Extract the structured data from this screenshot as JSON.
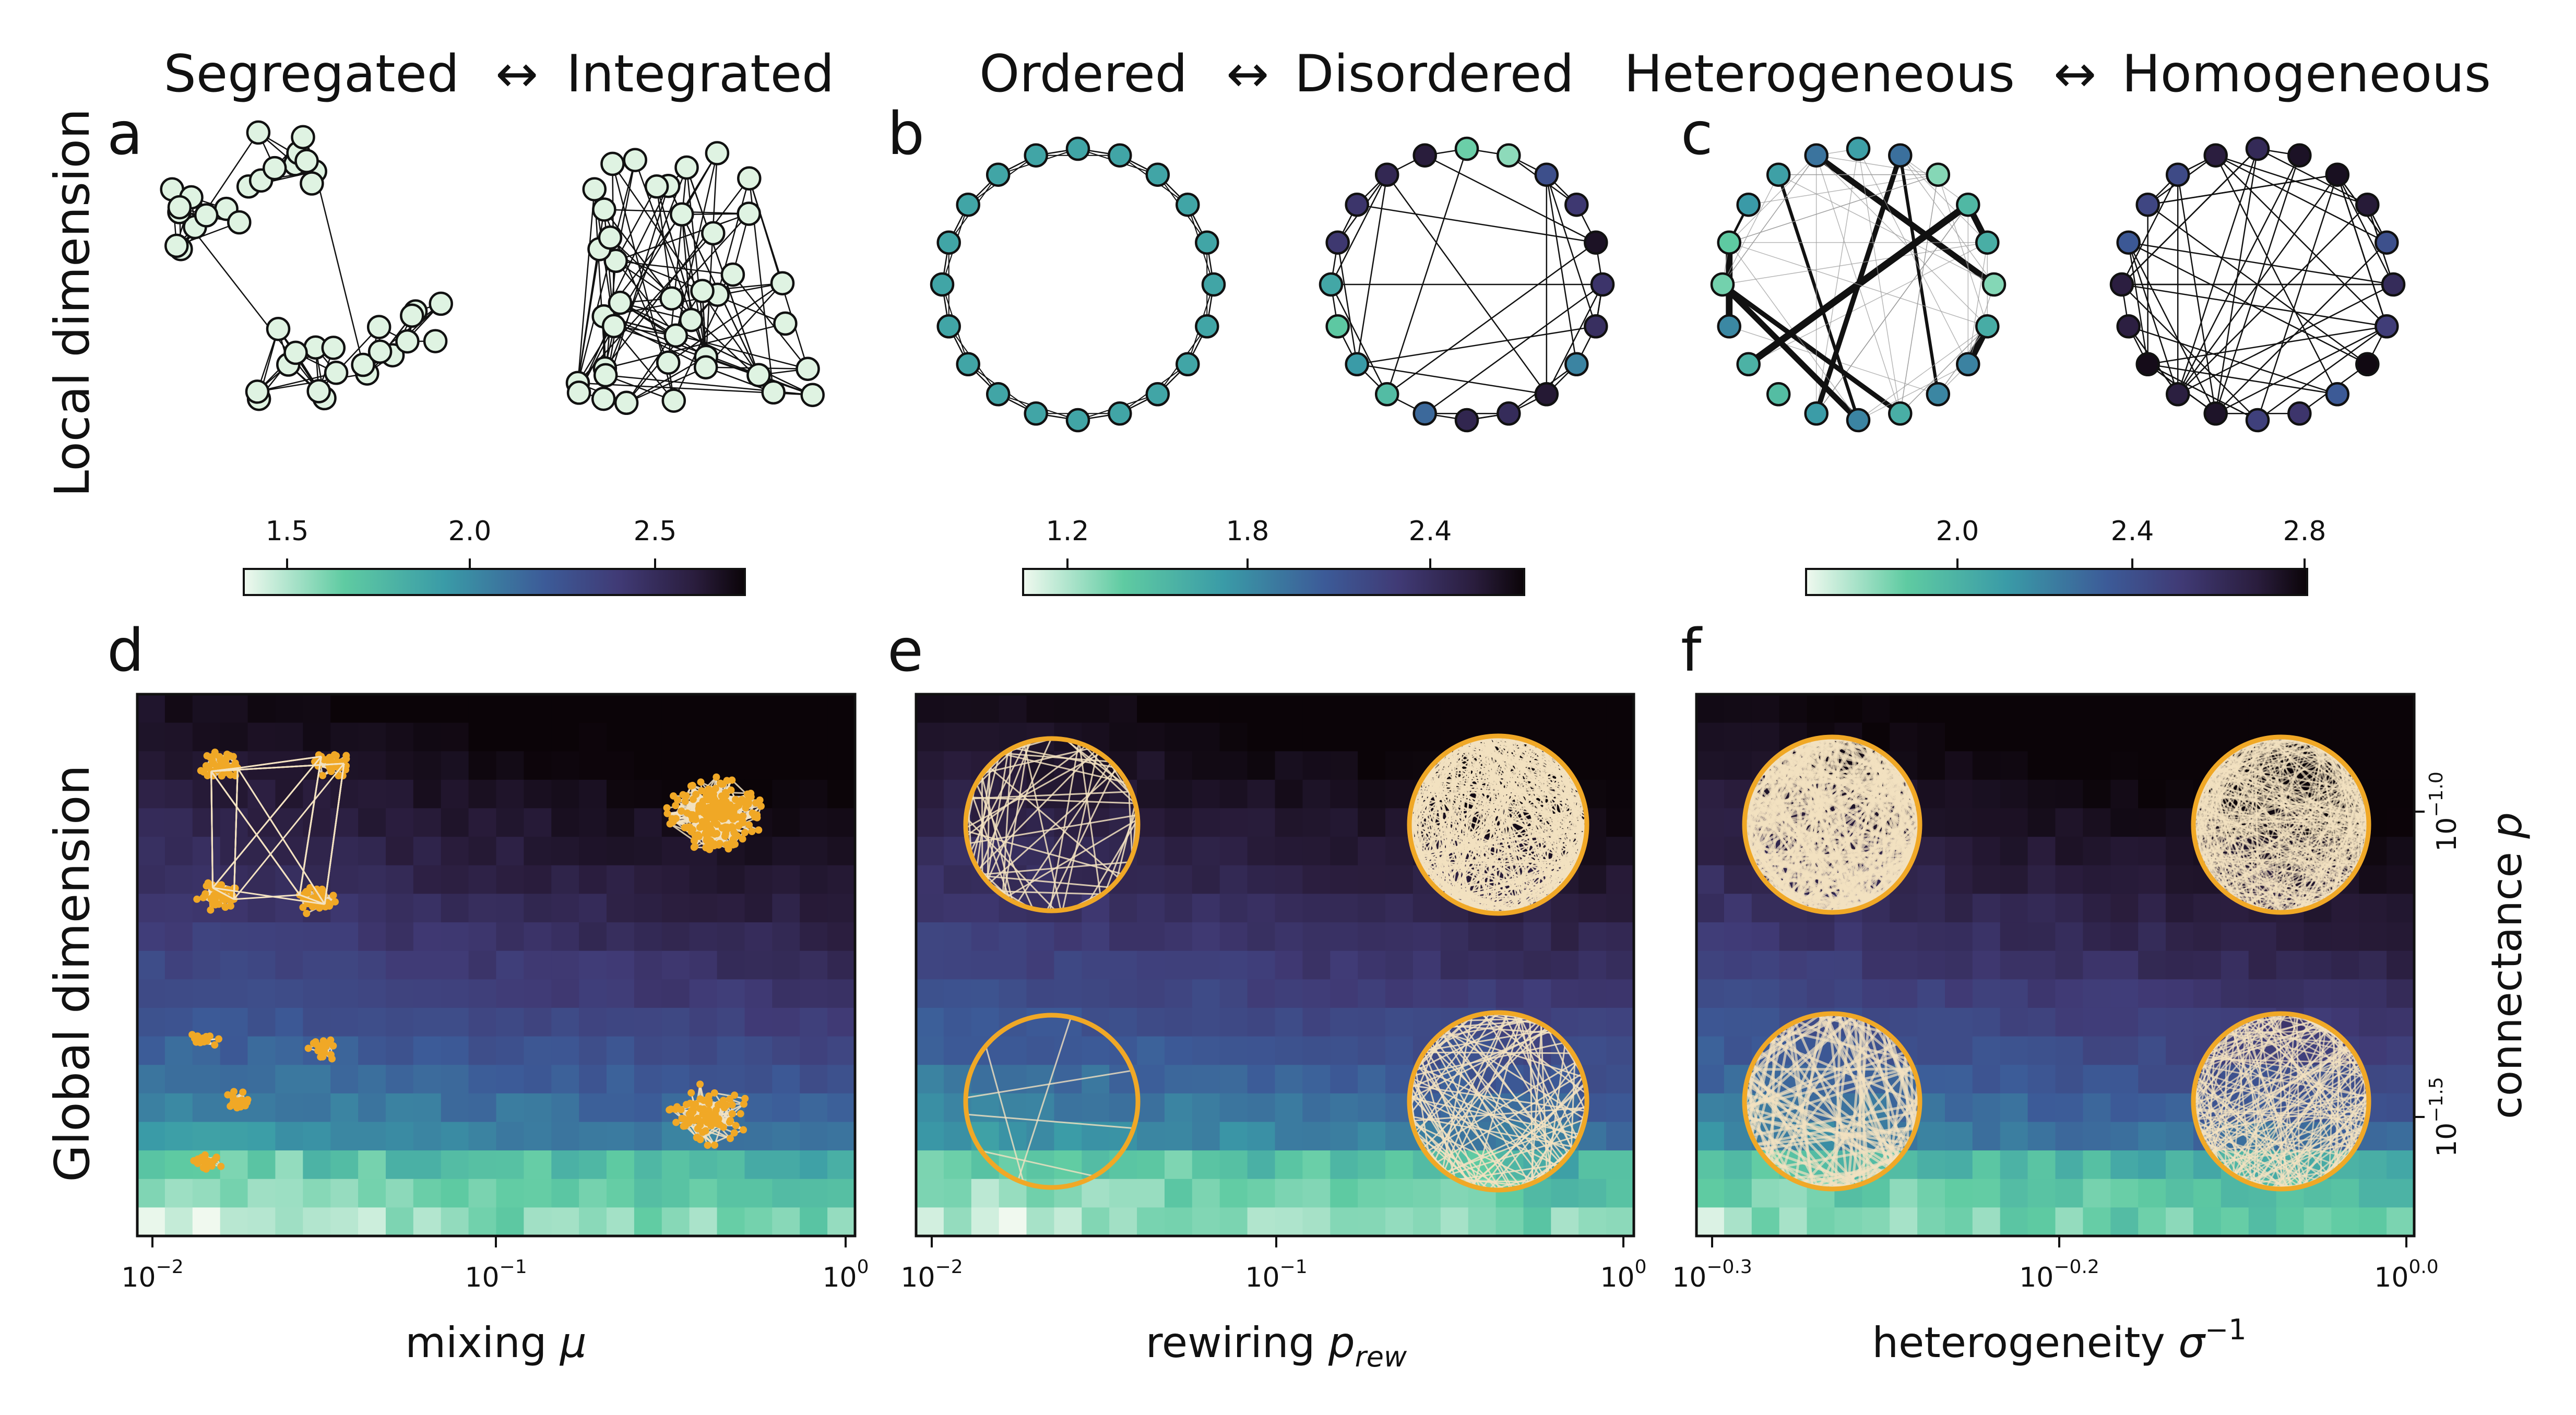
{
  "figure": {
    "side_labels": {
      "local": "Local dimension",
      "global": "Global dimension"
    },
    "headers": {
      "a": {
        "left": "Segregated",
        "arrow": "↔",
        "right": "Integrated"
      },
      "b": {
        "left": "Ordered",
        "arrow": "↔",
        "right": "Disordered"
      },
      "c": {
        "left": "Heterogeneous",
        "arrow": "↔",
        "right": "Homogeneous"
      }
    },
    "panel_letters": [
      "a",
      "b",
      "c",
      "d",
      "e",
      "f"
    ],
    "colorbars": [
      {
        "panel": "a",
        "ticks": [
          "1.5",
          "2.0",
          "2.5"
        ]
      },
      {
        "panel": "b",
        "ticks": [
          "1.2",
          "1.8",
          "2.4"
        ]
      },
      {
        "panel": "c",
        "ticks": [
          "2.0",
          "2.4",
          "2.8"
        ]
      }
    ],
    "heatmaps": [
      {
        "panel": "d",
        "xlabel_text": "mixing ",
        "xlabel_symbol": "μ",
        "xlabel_sub": "",
        "xticks": [
          "10",
          "10",
          "10"
        ],
        "xtick_exps": [
          "−2",
          "−1",
          "0"
        ]
      },
      {
        "panel": "e",
        "xlabel_text": "rewiring ",
        "xlabel_symbol": "p",
        "xlabel_sub": "rew",
        "xticks": [
          "10",
          "10",
          "10"
        ],
        "xtick_exps": [
          "−2",
          "−1",
          "0"
        ]
      },
      {
        "panel": "f",
        "xlabel_text": "heterogeneity ",
        "xlabel_symbol": "σ",
        "xlabel_sup": "−1",
        "xticks": [
          "10",
          "10",
          "10"
        ],
        "xtick_exps": [
          "−0.3",
          "−0.2",
          "0.0"
        ]
      }
    ],
    "right_axis": {
      "label_text": "connectance ",
      "label_symbol": "p",
      "ticks": [
        "10",
        "10"
      ],
      "tick_exps": [
        "−1.0",
        "−1.5"
      ]
    },
    "colors": {
      "node_fill_light": "#dff3e2",
      "network_orange": "#f0a826",
      "edge_cream": "#f3e2c1",
      "colormap": [
        "#f0f9ef",
        "#5fcba2",
        "#3a9ba7",
        "#3c5b98",
        "#403a75",
        "#2a1d3d",
        "#0b0408"
      ]
    }
  }
}
